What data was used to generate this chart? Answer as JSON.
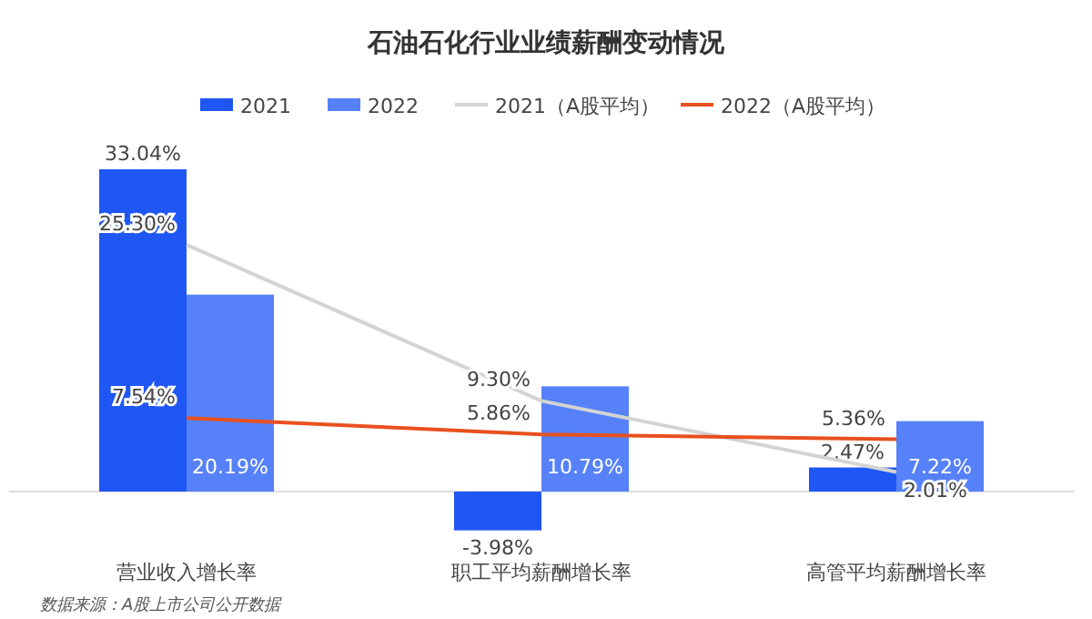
{
  "chart_data": {
    "type": "bar",
    "title": "石油石化行业业绩薪酬变动情况",
    "categories": [
      "营业收入增长率",
      "职工平均薪酬增长率",
      "高管平均薪酬增长率"
    ],
    "series": [
      {
        "name": "2021",
        "color": "#1f57f5",
        "values": [
          33.04,
          -3.98,
          2.47
        ],
        "value_labels": [
          "33.04%",
          "-3.98%",
          "2.47%"
        ]
      },
      {
        "name": "2022",
        "color": "#5781f8",
        "values": [
          20.19,
          10.79,
          7.22
        ],
        "value_labels": [
          "20.19%",
          "10.79%",
          "7.22%"
        ]
      },
      {
        "name": "2021（A股平均）",
        "type": "line",
        "color": "#d4d4d4",
        "values": [
          25.3,
          9.3,
          2.01
        ],
        "value_labels": [
          "25.30%",
          "9.30%",
          "2.01%"
        ]
      },
      {
        "name": "2022（A股平均）",
        "type": "line",
        "color": "#e8501e",
        "values": [
          7.54,
          5.86,
          5.36
        ],
        "value_labels": [
          "7.54%",
          "5.86%",
          "5.36%"
        ]
      }
    ],
    "legend": "top",
    "annotations": [
      "数据来源：A股上市公司公开数据"
    ]
  }
}
